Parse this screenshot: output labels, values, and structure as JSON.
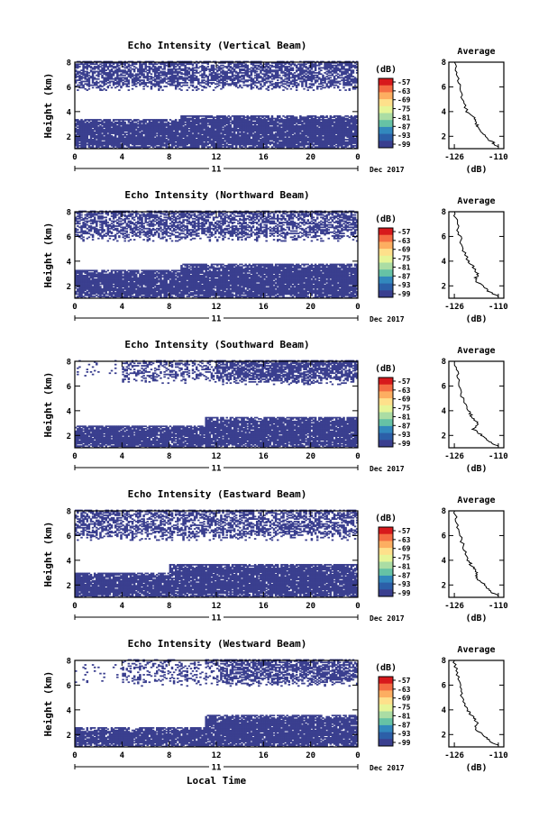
{
  "chart_data": [
    {
      "type": "heatmap",
      "title": "Echo Intensity (Vertical Beam)",
      "ylabel": "Height (km)",
      "y_ticks": [
        "2",
        "4",
        "6",
        "8"
      ],
      "ylim": [
        1,
        8
      ],
      "x_ticks": [
        "0",
        "4",
        "8",
        "12",
        "16",
        "20",
        "0"
      ],
      "xlim": [
        0,
        24
      ],
      "date_day": "11",
      "date_month_year": "Dec 2017",
      "low_band_top_km": [
        3.4,
        3.7
      ],
      "low_band_switch_hour": 9,
      "high_band_bottom_km": 5.7,
      "high_band_density": 0.65,
      "colorbar": {
        "unit": "(dB)",
        "ticks": [
          "-57",
          "-63",
          "-69",
          "-75",
          "-81",
          "-87",
          "-93",
          "-99"
        ],
        "colors": [
          "#d7191c",
          "#f46d43",
          "#fdae61",
          "#fee08b",
          "#e6f598",
          "#abdda4",
          "#66c2a5",
          "#3288bd",
          "#2c5fa8",
          "#3a3f8f"
        ]
      },
      "avg": {
        "title": "Average",
        "xlabel": "(dB)",
        "x_ticks": [
          "-126",
          "-110"
        ],
        "xlim": [
          -128,
          -108
        ],
        "y_ticks": [
          "2",
          "4",
          "6",
          "8"
        ],
        "ylim": [
          1,
          8
        ],
        "profile_km": [
          8,
          7,
          6,
          5,
          4,
          3.5,
          3,
          2.5,
          2,
          1.5,
          1.1
        ],
        "profile_db": [
          -126,
          -125,
          -124,
          -123,
          -121.5,
          -119,
          -118,
          -116.5,
          -115,
          -112,
          -110
        ]
      }
    },
    {
      "type": "heatmap",
      "title": "Echo Intensity (Northward Beam)",
      "ylabel": "Height (km)",
      "y_ticks": [
        "2",
        "4",
        "6",
        "8"
      ],
      "ylim": [
        1,
        8
      ],
      "x_ticks": [
        "0",
        "4",
        "8",
        "12",
        "16",
        "20",
        "0"
      ],
      "xlim": [
        0,
        24
      ],
      "date_day": "11",
      "date_month_year": "Dec 2017",
      "low_band_top_km": [
        3.3,
        3.8
      ],
      "low_band_switch_hour": 9,
      "high_band_bottom_km": 5.6,
      "high_band_density": 0.6,
      "colorbar": {
        "unit": "(dB)",
        "ticks": [
          "-57",
          "-63",
          "-69",
          "-75",
          "-81",
          "-87",
          "-93",
          "-99"
        ],
        "colors": [
          "#d7191c",
          "#f46d43",
          "#fdae61",
          "#fee08b",
          "#e6f598",
          "#abdda4",
          "#66c2a5",
          "#3288bd",
          "#2c5fa8",
          "#3a3f8f"
        ]
      },
      "avg": {
        "title": "Average",
        "xlabel": "(dB)",
        "x_ticks": [
          "-126",
          "-110"
        ],
        "xlim": [
          -128,
          -108
        ],
        "y_ticks": [
          "2",
          "4",
          "6",
          "8"
        ],
        "ylim": [
          1,
          8
        ],
        "profile_km": [
          8,
          7,
          6,
          5,
          4,
          3.5,
          3,
          2.5,
          2,
          1.5,
          1.1
        ],
        "profile_db": [
          -126,
          -125,
          -124,
          -123,
          -121,
          -119,
          -117.5,
          -118.5,
          -116,
          -113,
          -110
        ]
      }
    },
    {
      "type": "heatmap",
      "title": "Echo Intensity (Southward Beam)",
      "ylabel": "Height (km)",
      "y_ticks": [
        "2",
        "4",
        "6",
        "8"
      ],
      "ylim": [
        1,
        8
      ],
      "x_ticks": [
        "0",
        "4",
        "8",
        "12",
        "16",
        "20",
        "0"
      ],
      "xlim": [
        0,
        24
      ],
      "date_day": "11",
      "date_month_year": "Dec 2017",
      "low_band_top_km": [
        2.8,
        3.5
      ],
      "low_band_switch_hour": 11,
      "high_band_bottom_km": 6.1,
      "high_band_density": 0.35,
      "colorbar": {
        "unit": "(dB)",
        "ticks": [
          "-57",
          "-63",
          "-69",
          "-75",
          "-81",
          "-87",
          "-93",
          "-99"
        ],
        "colors": [
          "#d7191c",
          "#f46d43",
          "#fdae61",
          "#fee08b",
          "#e6f598",
          "#abdda4",
          "#66c2a5",
          "#3288bd",
          "#2c5fa8",
          "#3a3f8f"
        ]
      },
      "avg": {
        "title": "Average",
        "xlabel": "(dB)",
        "x_ticks": [
          "-126",
          "-110"
        ],
        "xlim": [
          -128,
          -108
        ],
        "y_ticks": [
          "2",
          "4",
          "6",
          "8"
        ],
        "ylim": [
          1,
          8
        ],
        "profile_km": [
          8,
          7,
          6,
          5,
          4,
          3.5,
          3,
          2.5,
          2,
          1.5,
          1.1
        ],
        "profile_db": [
          -126,
          -125,
          -124,
          -123,
          -121,
          -119.5,
          -117.5,
          -119,
          -116,
          -113,
          -110
        ]
      }
    },
    {
      "type": "heatmap",
      "title": "Echo Intensity (Eastward Beam)",
      "ylabel": "Height (km)",
      "y_ticks": [
        "2",
        "4",
        "6",
        "8"
      ],
      "ylim": [
        1,
        8
      ],
      "x_ticks": [
        "0",
        "4",
        "8",
        "12",
        "16",
        "20",
        "0"
      ],
      "xlim": [
        0,
        24
      ],
      "date_day": "11",
      "date_month_year": "Dec 2017",
      "low_band_top_km": [
        3.0,
        3.7
      ],
      "low_band_switch_hour": 8,
      "high_band_bottom_km": 5.6,
      "high_band_density": 0.55,
      "colorbar": {
        "unit": "(dB)",
        "ticks": [
          "-57",
          "-63",
          "-69",
          "-75",
          "-81",
          "-87",
          "-93",
          "-99"
        ],
        "colors": [
          "#d7191c",
          "#f46d43",
          "#fdae61",
          "#fee08b",
          "#e6f598",
          "#abdda4",
          "#66c2a5",
          "#3288bd",
          "#2c5fa8",
          "#3a3f8f"
        ]
      },
      "avg": {
        "title": "Average",
        "xlabel": "(dB)",
        "x_ticks": [
          "-126",
          "-110"
        ],
        "xlim": [
          -128,
          -108
        ],
        "y_ticks": [
          "2",
          "4",
          "6",
          "8"
        ],
        "ylim": [
          1,
          8
        ],
        "profile_km": [
          8,
          7,
          6,
          5,
          4,
          3.5,
          3,
          2.5,
          2,
          1.5,
          1.1
        ],
        "profile_db": [
          -126,
          -125,
          -124,
          -122.5,
          -121,
          -119.5,
          -118,
          -117.5,
          -115,
          -113,
          -110
        ]
      }
    },
    {
      "type": "heatmap",
      "title": "Echo Intensity (Westward Beam)",
      "ylabel": "Height (km)",
      "y_ticks": [
        "2",
        "4",
        "6",
        "8"
      ],
      "ylim": [
        1,
        8
      ],
      "x_ticks": [
        "0",
        "4",
        "8",
        "12",
        "16",
        "20",
        "0"
      ],
      "xlim": [
        0,
        24
      ],
      "date_day": "11",
      "date_month_year": "Dec 2017",
      "low_band_top_km": [
        2.6,
        3.6
      ],
      "low_band_switch_hour": 11,
      "high_band_bottom_km": 5.9,
      "high_band_density": 0.3,
      "xlabel": "Local Time",
      "colorbar": {
        "unit": "(dB)",
        "ticks": [
          "-57",
          "-63",
          "-69",
          "-75",
          "-81",
          "-87",
          "-93",
          "-99"
        ],
        "colors": [
          "#d7191c",
          "#f46d43",
          "#fdae61",
          "#fee08b",
          "#e6f598",
          "#abdda4",
          "#66c2a5",
          "#3288bd",
          "#2c5fa8",
          "#3a3f8f"
        ]
      },
      "avg": {
        "title": "Average",
        "xlabel": "(dB)",
        "x_ticks": [
          "-126",
          "-110"
        ],
        "xlim": [
          -128,
          -108
        ],
        "y_ticks": [
          "2",
          "4",
          "6",
          "8"
        ],
        "ylim": [
          1,
          8
        ],
        "profile_km": [
          8,
          7,
          6,
          5,
          4,
          3.5,
          3,
          2.5,
          2,
          1.5,
          1.1
        ],
        "profile_db": [
          -126,
          -125,
          -124,
          -123,
          -121.5,
          -119.5,
          -117.5,
          -118.5,
          -116,
          -113,
          -110
        ]
      }
    }
  ],
  "style": {
    "fill_color": "#3a3f8f"
  }
}
